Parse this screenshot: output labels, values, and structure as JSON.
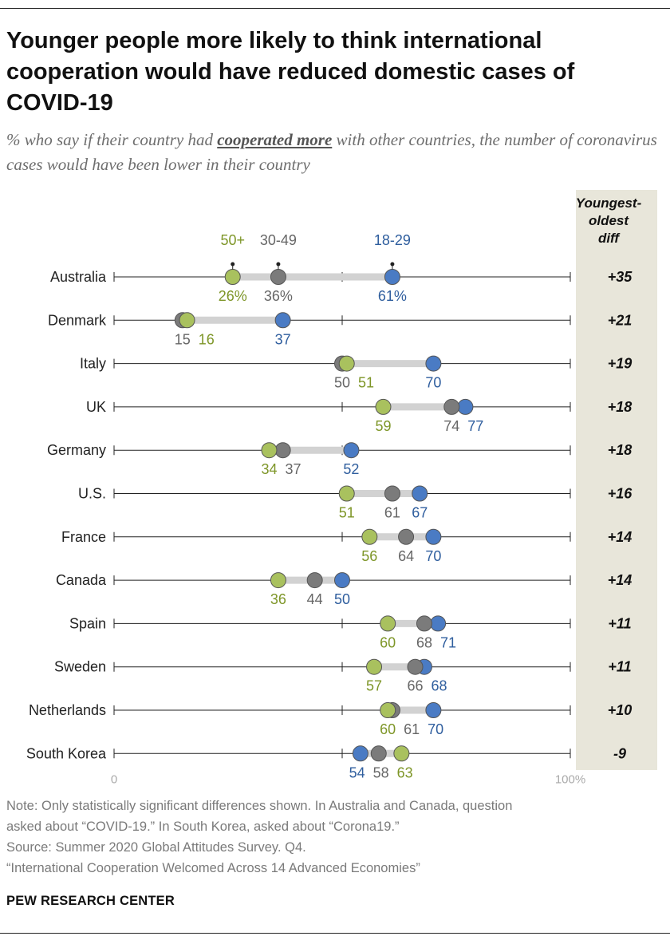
{
  "title": "Younger people more likely to think international cooperation would have reduced domestic cases of COVID-19",
  "subtitle": {
    "before": "% who say if their country had ",
    "emphasis": "cooperated more",
    "after": " with other countries, the number of coronavirus cases would have been lower in their country"
  },
  "diff_header": [
    "Youngest-",
    "oldest",
    "diff"
  ],
  "colors": {
    "age_18_29": "#4a7bc4",
    "age_30_49": "#7b7b7b",
    "age_50_plus": "#a9c15e",
    "label_18_29": "#2f5e9e",
    "label_30_49": "#666666",
    "label_50_plus": "#7e9628",
    "connector": "#d2d2d2",
    "diff_panel": "#e8e6da"
  },
  "chart_data": {
    "type": "dot",
    "xlim": [
      0,
      100
    ],
    "x_tick_labels": [
      "0",
      "100%"
    ],
    "series": [
      {
        "name": "18-29",
        "key": "y18_29"
      },
      {
        "name": "30-49",
        "key": "y30_49"
      },
      {
        "name": "50+",
        "key": "y50"
      }
    ],
    "rows": [
      {
        "country": "Australia",
        "y18_29": 61,
        "y30_49": 36,
        "y50": 26,
        "diff": "+35",
        "pct": true
      },
      {
        "country": "Denmark",
        "y18_29": 37,
        "y30_49": 15,
        "y50": 16,
        "diff": "+21"
      },
      {
        "country": "Italy",
        "y18_29": 70,
        "y30_49": 50,
        "y50": 51,
        "diff": "+19"
      },
      {
        "country": "UK",
        "y18_29": 77,
        "y30_49": 74,
        "y50": 59,
        "diff": "+18"
      },
      {
        "country": "Germany",
        "y18_29": 52,
        "y30_49": 37,
        "y50": 34,
        "diff": "+18"
      },
      {
        "country": "U.S.",
        "y18_29": 67,
        "y30_49": 61,
        "y50": 51,
        "diff": "+16"
      },
      {
        "country": "France",
        "y18_29": 70,
        "y30_49": 64,
        "y50": 56,
        "diff": "+14"
      },
      {
        "country": "Canada",
        "y18_29": 50,
        "y30_49": 44,
        "y50": 36,
        "diff": "+14"
      },
      {
        "country": "Spain",
        "y18_29": 71,
        "y30_49": 68,
        "y50": 60,
        "diff": "+11"
      },
      {
        "country": "Sweden",
        "y18_29": 68,
        "y30_49": 66,
        "y50": 57,
        "diff": "+11"
      },
      {
        "country": "Netherlands",
        "y18_29": 70,
        "y30_49": 61,
        "y50": 60,
        "diff": "+10"
      },
      {
        "country": "South Korea",
        "y18_29": 54,
        "y30_49": 58,
        "y50": 63,
        "diff": "-9"
      }
    ]
  },
  "notes": [
    "Note: Only statistically significant differences shown. In Australia and Canada, question",
    "asked about “COVID-19.” In South Korea, asked about “Corona19.”",
    "Source: Summer 2020 Global Attitudes Survey. Q4.",
    "“International Cooperation Welcomed Across 14 Advanced Economies”"
  ],
  "org": "PEW RESEARCH CENTER"
}
